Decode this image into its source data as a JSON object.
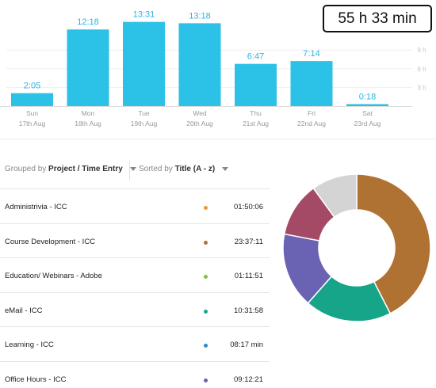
{
  "total": "55 h 33 min",
  "y_ticks": [
    "9 h",
    "6 h",
    "3 h"
  ],
  "days": [
    {
      "day": "Sun",
      "date": "17th Aug"
    },
    {
      "day": "Mon",
      "date": "18th Aug"
    },
    {
      "day": "Tue",
      "date": "19th Aug"
    },
    {
      "day": "Wed",
      "date": "20th Aug"
    },
    {
      "day": "Thu",
      "date": "21st Aug"
    },
    {
      "day": "Fri",
      "date": "22nd Aug"
    },
    {
      "day": "Sat",
      "date": "23rd Aug"
    }
  ],
  "chart_data": {
    "type": "bar",
    "categories": [
      "Sun 17th Aug",
      "Mon 18th Aug",
      "Tue 19th Aug",
      "Wed 20th Aug",
      "Thu 21st Aug",
      "Fri 22nd Aug",
      "Sat 23rd Aug"
    ],
    "labels": [
      "2:05",
      "12:18",
      "13:31",
      "13:18",
      "6:47",
      "7:14",
      "0:18"
    ],
    "values": [
      2.08,
      12.3,
      13.52,
      13.3,
      6.78,
      7.23,
      0.3
    ],
    "ylabel": "",
    "ylim": [
      0,
      15
    ],
    "yticks": [
      "3 h",
      "6 h",
      "9 h"
    ],
    "grid": true,
    "bar_color": "#2cc1e6"
  },
  "toolbar": {
    "group_prefix": "Grouped by",
    "group_value": "Project / Time Entry",
    "sort_prefix": "Sorted by",
    "sort_value": "Title (A - z)"
  },
  "entries": [
    {
      "title": "Administrivia - ICC",
      "time": "01:50:06",
      "color": "#f0963a"
    },
    {
      "title": "Course Development - ICC",
      "time": "23:37:11",
      "color": "#b07232"
    },
    {
      "title": "Education/ Webinars - Adobe",
      "time": "01:11:51",
      "color": "#7ec23f"
    },
    {
      "title": "eMail - ICC",
      "time": "10:31:58",
      "color": "#17a589"
    },
    {
      "title": "Learning - ICC",
      "time": "08:17 min",
      "color": "#2a8bc9"
    },
    {
      "title": "Office Hours - ICC",
      "time": "09:12:21",
      "color": "#6a63b4"
    }
  ],
  "donut": {
    "segments": [
      {
        "name": "Course Development - ICC",
        "fraction": 0.425,
        "color": "#b07232"
      },
      {
        "name": "eMail - ICC",
        "fraction": 0.19,
        "color": "#17a589"
      },
      {
        "name": "Office Hours - ICC",
        "fraction": 0.165,
        "color": "#6a63b4"
      },
      {
        "name": "Magenta segment",
        "fraction": 0.12,
        "color": "#a54a66"
      },
      {
        "name": "Grey segment",
        "fraction": 0.1,
        "color": "#d4d4d4"
      }
    ]
  }
}
